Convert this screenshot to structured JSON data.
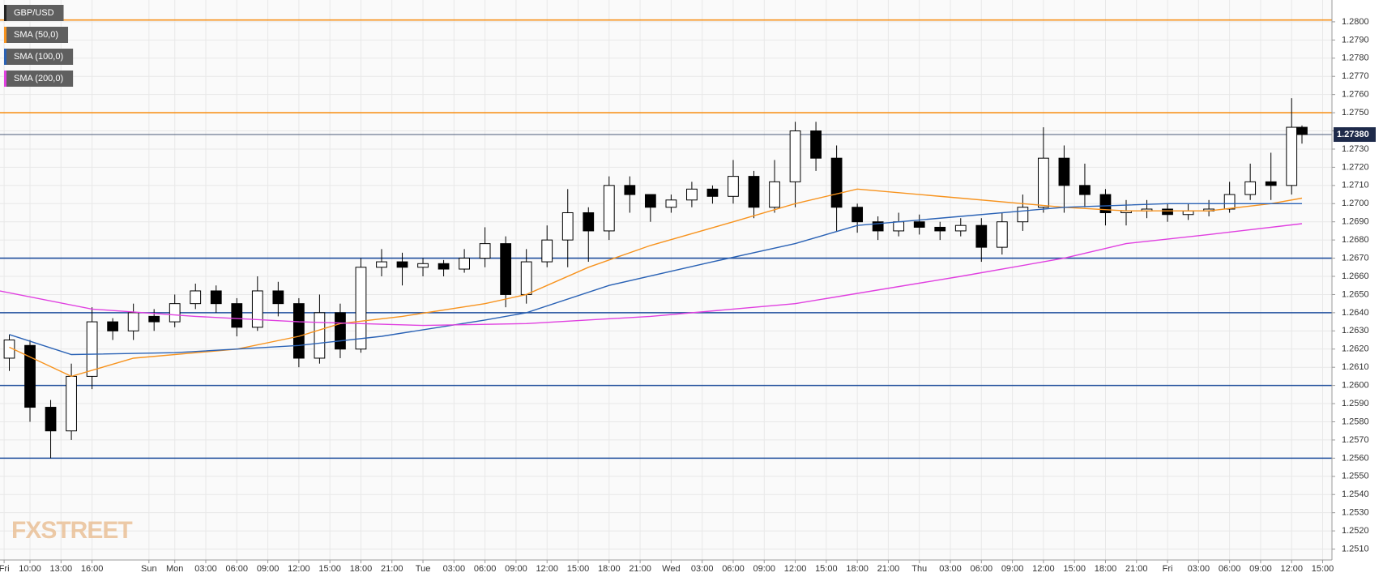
{
  "chart_data": {
    "type": "candlestick",
    "watermark": "FXSTREET",
    "xlim": [
      7.1,
      135.9
    ],
    "ylim": [
      1.2504,
      1.2812
    ],
    "grid": true,
    "xticks": [
      {
        "value": 7.5,
        "label": "Fri"
      },
      {
        "value": 10,
        "label": "10:00"
      },
      {
        "value": 13,
        "label": "13:00"
      },
      {
        "value": 16,
        "label": "16:00"
      },
      {
        "value": 21.5,
        "label": "Sun"
      },
      {
        "value": 24,
        "label": "Mon"
      },
      {
        "value": 27,
        "label": "03:00"
      },
      {
        "value": 30,
        "label": "06:00"
      },
      {
        "value": 33,
        "label": "09:00"
      },
      {
        "value": 36,
        "label": "12:00"
      },
      {
        "value": 39,
        "label": "15:00"
      },
      {
        "value": 42,
        "label": "18:00"
      },
      {
        "value": 45,
        "label": "21:00"
      },
      {
        "value": 48,
        "label": "Tue"
      },
      {
        "value": 51,
        "label": "03:00"
      },
      {
        "value": 54,
        "label": "06:00"
      },
      {
        "value": 57,
        "label": "09:00"
      },
      {
        "value": 60,
        "label": "12:00"
      },
      {
        "value": 63,
        "label": "15:00"
      },
      {
        "value": 66,
        "label": "18:00"
      },
      {
        "value": 69,
        "label": "21:00"
      },
      {
        "value": 72,
        "label": "Wed"
      },
      {
        "value": 75,
        "label": "03:00"
      },
      {
        "value": 78,
        "label": "06:00"
      },
      {
        "value": 81,
        "label": "09:00"
      },
      {
        "value": 84,
        "label": "12:00"
      },
      {
        "value": 87,
        "label": "15:00"
      },
      {
        "value": 90,
        "label": "18:00"
      },
      {
        "value": 93,
        "label": "21:00"
      },
      {
        "value": 96,
        "label": "Thu"
      },
      {
        "value": 99,
        "label": "03:00"
      },
      {
        "value": 102,
        "label": "06:00"
      },
      {
        "value": 105,
        "label": "09:00"
      },
      {
        "value": 108,
        "label": "12:00"
      },
      {
        "value": 111,
        "label": "15:00"
      },
      {
        "value": 114,
        "label": "18:00"
      },
      {
        "value": 117,
        "label": "21:00"
      },
      {
        "value": 120,
        "label": "Fri"
      },
      {
        "value": 123,
        "label": "03:00"
      },
      {
        "value": 126,
        "label": "06:00"
      },
      {
        "value": 129,
        "label": "09:00"
      },
      {
        "value": 132,
        "label": "12:00"
      },
      {
        "value": 135,
        "label": "15:00"
      }
    ],
    "yticks": [
      {
        "value": 1.251,
        "label": "1.2510"
      },
      {
        "value": 1.252,
        "label": "1.2520"
      },
      {
        "value": 1.253,
        "label": "1.2530"
      },
      {
        "value": 1.254,
        "label": "1.2540"
      },
      {
        "value": 1.255,
        "label": "1.2550"
      },
      {
        "value": 1.256,
        "label": "1.2560"
      },
      {
        "value": 1.257,
        "label": "1.2570"
      },
      {
        "value": 1.258,
        "label": "1.2580"
      },
      {
        "value": 1.259,
        "label": "1.2590"
      },
      {
        "value": 1.26,
        "label": "1.2600"
      },
      {
        "value": 1.261,
        "label": "1.2610"
      },
      {
        "value": 1.262,
        "label": "1.2620"
      },
      {
        "value": 1.263,
        "label": "1.2630"
      },
      {
        "value": 1.264,
        "label": "1.2640"
      },
      {
        "value": 1.265,
        "label": "1.2650"
      },
      {
        "value": 1.266,
        "label": "1.2660"
      },
      {
        "value": 1.267,
        "label": "1.2670"
      },
      {
        "value": 1.268,
        "label": "1.2680"
      },
      {
        "value": 1.269,
        "label": "1.2690"
      },
      {
        "value": 1.27,
        "label": "1.2700"
      },
      {
        "value": 1.271,
        "label": "1.2710"
      },
      {
        "value": 1.272,
        "label": "1.2720"
      },
      {
        "value": 1.273,
        "label": "1.2730"
      },
      {
        "value": 1.274,
        "label": "1.2740"
      },
      {
        "value": 1.275,
        "label": "1.2750"
      },
      {
        "value": 1.276,
        "label": "1.2760"
      },
      {
        "value": 1.277,
        "label": "1.2770"
      },
      {
        "value": 1.278,
        "label": "1.2780"
      },
      {
        "value": 1.279,
        "label": "1.2790"
      },
      {
        "value": 1.28,
        "label": "1.2800"
      }
    ],
    "last_price": {
      "value": 1.2738,
      "label": "1.27380"
    },
    "levels": [
      {
        "value": 1.2801,
        "color": "#f7931e"
      },
      {
        "value": 1.275,
        "color": "#f7931e"
      },
      {
        "value": 1.267,
        "color": "#1f4e9c"
      },
      {
        "value": 1.264,
        "color": "#1f4e9c"
      },
      {
        "value": 1.26,
        "color": "#1f4e9c"
      },
      {
        "value": 1.256,
        "color": "#1f4e9c"
      }
    ],
    "series": [
      {
        "name": "GBP/USD",
        "type": "candlestick",
        "color": "#000000",
        "x": [
          8,
          10,
          12,
          14,
          16,
          18,
          20,
          22,
          24,
          26,
          28,
          30,
          32,
          34,
          36,
          38,
          40,
          42,
          44,
          46,
          48,
          50,
          52,
          54,
          56,
          58,
          60,
          62,
          64,
          66,
          68,
          70,
          72,
          74,
          76,
          78,
          80,
          82,
          84,
          86,
          88,
          90,
          92,
          94,
          96,
          98,
          100,
          102,
          104,
          106,
          108,
          110,
          112,
          114,
          116,
          118,
          120,
          122,
          124,
          126,
          128,
          130,
          132,
          133
        ],
        "open": [
          1.2615,
          1.2622,
          1.2588,
          1.2575,
          1.2605,
          1.2635,
          1.263,
          1.2638,
          1.2635,
          1.2645,
          1.2652,
          1.2645,
          1.2632,
          1.2652,
          1.2645,
          1.2615,
          1.264,
          1.262,
          1.2665,
          1.2668,
          1.2665,
          1.2667,
          1.2664,
          1.267,
          1.2678,
          1.265,
          1.2668,
          1.268,
          1.2695,
          1.2685,
          1.271,
          1.2705,
          1.2698,
          1.2702,
          1.2708,
          1.2704,
          1.2715,
          1.2698,
          1.2712,
          1.274,
          1.2725,
          1.2698,
          1.269,
          1.2685,
          1.269,
          1.2687,
          1.2685,
          1.2688,
          1.2676,
          1.269,
          1.2698,
          1.2725,
          1.271,
          1.2705,
          1.2695,
          1.2696,
          1.2697,
          1.2694,
          1.2696,
          1.2697,
          1.2705,
          1.2712,
          1.271,
          1.2742
        ],
        "high": [
          1.2628,
          1.2625,
          1.2592,
          1.2612,
          1.2643,
          1.2637,
          1.2645,
          1.2642,
          1.265,
          1.2656,
          1.2655,
          1.2648,
          1.266,
          1.2657,
          1.2648,
          1.265,
          1.2645,
          1.267,
          1.2675,
          1.2673,
          1.267,
          1.2669,
          1.2675,
          1.2687,
          1.2682,
          1.2675,
          1.2688,
          1.2708,
          1.2698,
          1.2715,
          1.2715,
          1.2704,
          1.2705,
          1.2712,
          1.271,
          1.2724,
          1.2718,
          1.2724,
          1.2745,
          1.2745,
          1.2732,
          1.27,
          1.2693,
          1.2695,
          1.2694,
          1.269,
          1.2692,
          1.2692,
          1.2695,
          1.2705,
          1.2742,
          1.2732,
          1.2722,
          1.2708,
          1.2702,
          1.2702,
          1.27,
          1.27,
          1.2702,
          1.2712,
          1.2722,
          1.2728,
          1.2758,
          1.2743
        ],
        "low": [
          1.2608,
          1.258,
          1.256,
          1.257,
          1.2598,
          1.2625,
          1.2625,
          1.263,
          1.2632,
          1.2642,
          1.264,
          1.2627,
          1.263,
          1.2638,
          1.261,
          1.2612,
          1.2615,
          1.2618,
          1.266,
          1.2655,
          1.266,
          1.266,
          1.2662,
          1.2665,
          1.2643,
          1.2645,
          1.2665,
          1.2665,
          1.2668,
          1.268,
          1.2695,
          1.269,
          1.2695,
          1.2698,
          1.27,
          1.27,
          1.2692,
          1.2695,
          1.2698,
          1.2718,
          1.2685,
          1.2684,
          1.268,
          1.2682,
          1.2683,
          1.268,
          1.2682,
          1.2668,
          1.2672,
          1.2685,
          1.2695,
          1.2695,
          1.2698,
          1.2688,
          1.2688,
          1.2692,
          1.269,
          1.2691,
          1.2693,
          1.2695,
          1.2702,
          1.2702,
          1.2705,
          1.2733
        ],
        "close": [
          1.2625,
          1.2588,
          1.2575,
          1.2605,
          1.2635,
          1.263,
          1.264,
          1.2635,
          1.2645,
          1.2652,
          1.2645,
          1.2632,
          1.2652,
          1.2645,
          1.2615,
          1.264,
          1.262,
          1.2665,
          1.2668,
          1.2665,
          1.2667,
          1.2664,
          1.267,
          1.2678,
          1.265,
          1.2668,
          1.268,
          1.2695,
          1.2685,
          1.271,
          1.2705,
          1.2698,
          1.2702,
          1.2708,
          1.2704,
          1.2715,
          1.2698,
          1.2712,
          1.274,
          1.2725,
          1.2698,
          1.269,
          1.2685,
          1.269,
          1.2687,
          1.2685,
          1.2688,
          1.2676,
          1.269,
          1.2698,
          1.2725,
          1.271,
          1.2705,
          1.2695,
          1.2696,
          1.2697,
          1.2694,
          1.2696,
          1.2697,
          1.2705,
          1.2712,
          1.271,
          1.2742,
          1.2738
        ]
      },
      {
        "name": "SMA (50,0)",
        "type": "line",
        "color": "#f7931e",
        "x": [
          8,
          14,
          20,
          30,
          36,
          40,
          46,
          54,
          58,
          64,
          70,
          78,
          84,
          90,
          100,
          110,
          116,
          124,
          130,
          133
        ],
        "values": [
          1.2621,
          1.2605,
          1.2615,
          1.262,
          1.2627,
          1.2634,
          1.2638,
          1.2645,
          1.265,
          1.2665,
          1.2677,
          1.269,
          1.27,
          1.2708,
          1.2703,
          1.2698,
          1.2696,
          1.2696,
          1.27,
          1.2703
        ]
      },
      {
        "name": "SMA (100,0)",
        "type": "line",
        "color": "#2a62b5",
        "x": [
          8,
          14,
          24,
          36,
          44,
          54,
          58,
          66,
          76,
          84,
          90,
          100,
          110,
          120,
          133
        ],
        "values": [
          1.2628,
          1.2617,
          1.2618,
          1.2622,
          1.2627,
          1.2636,
          1.264,
          1.2655,
          1.2668,
          1.2678,
          1.2688,
          1.2693,
          1.2698,
          1.27,
          1.27
        ]
      },
      {
        "name": "SMA (200,0)",
        "type": "line",
        "color": "#e040e0",
        "x": [
          7.1,
          16,
          26,
          36,
          48,
          58,
          70,
          84,
          100,
          110,
          116,
          124,
          133
        ],
        "values": [
          1.2652,
          1.2642,
          1.2638,
          1.2635,
          1.2633,
          1.2634,
          1.2638,
          1.2645,
          1.266,
          1.267,
          1.2678,
          1.2683,
          1.2689
        ]
      }
    ]
  }
}
